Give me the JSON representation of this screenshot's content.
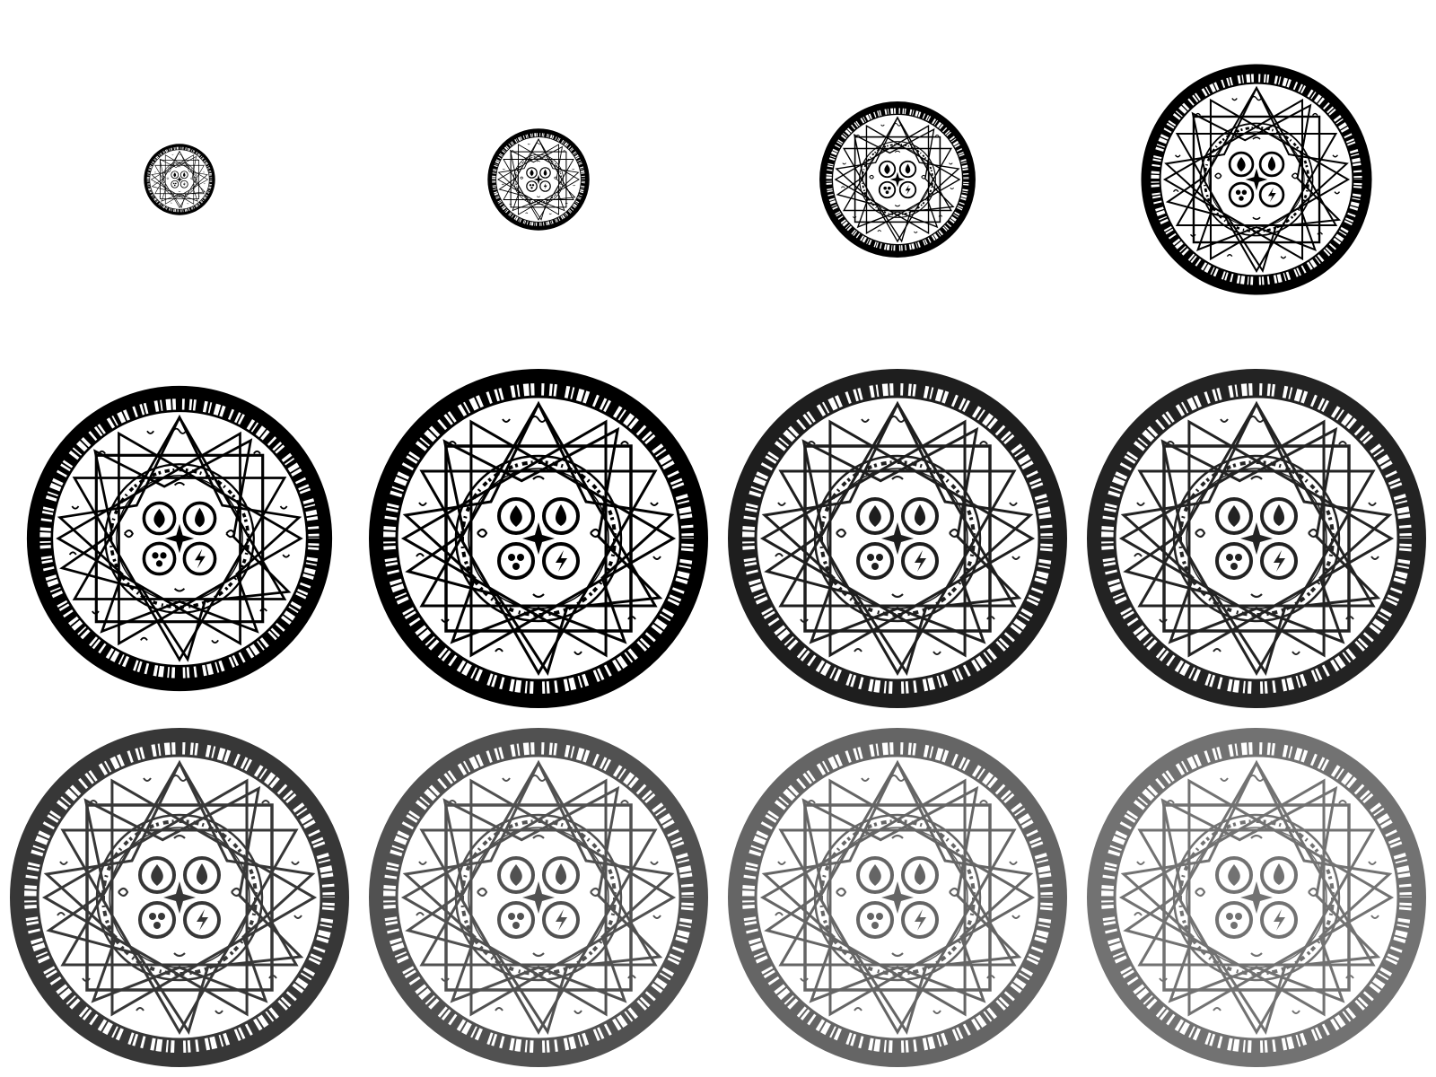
{
  "sheet": {
    "background": "#ffffff",
    "ink": "#000000"
  },
  "frames": [
    {
      "name": "circle-frame-1",
      "scale": 0.21,
      "opacity": 1.0
    },
    {
      "name": "circle-frame-2",
      "scale": 0.3,
      "opacity": 1.0
    },
    {
      "name": "circle-frame-3",
      "scale": 0.46,
      "opacity": 1.0
    },
    {
      "name": "circle-frame-4",
      "scale": 0.68,
      "opacity": 1.0
    },
    {
      "name": "circle-frame-5",
      "scale": 0.9,
      "opacity": 1.0
    },
    {
      "name": "circle-frame-6",
      "scale": 1.0,
      "opacity": 1.0
    },
    {
      "name": "circle-frame-7",
      "scale": 1.0,
      "opacity": 0.88
    },
    {
      "name": "circle-frame-8",
      "scale": 1.0,
      "opacity": 0.86
    },
    {
      "name": "circle-frame-9",
      "scale": 1.0,
      "opacity": 0.78
    },
    {
      "name": "circle-frame-10",
      "scale": 1.0,
      "opacity": 0.68
    },
    {
      "name": "circle-frame-11",
      "scale": 1.0,
      "opacity": 0.6
    },
    {
      "name": "circle-frame-12",
      "scale": 1.0,
      "opacity": 0.55
    }
  ],
  "element_icons": [
    "fire-icon",
    "water-icon",
    "earth-icon",
    "lightning-icon"
  ],
  "center_icon": "compass-star-icon"
}
